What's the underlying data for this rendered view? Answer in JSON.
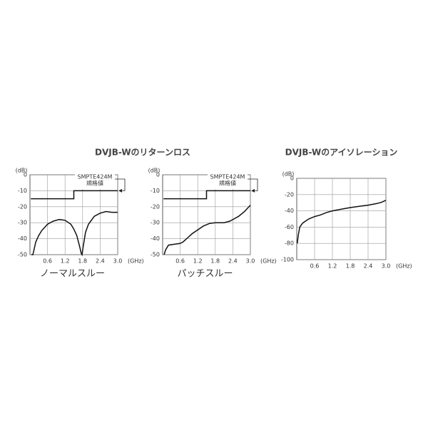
{
  "title": "DVJB-Wのリターンロス",
  "chart_data": [
    {
      "type": "line",
      "caption": "ノーマルスルー",
      "y_unit": "(dB)",
      "x_unit": "(GHz)",
      "annotation": [
        "SMPTE424M",
        "規格値"
      ],
      "xlim": [
        0,
        3
      ],
      "ylim": [
        -50,
        0
      ],
      "xticks": [
        0.6,
        1.2,
        1.8,
        2.4,
        {
          "value": 3,
          "label": "3.0"
        }
      ],
      "yticks": [
        0,
        -10,
        -20,
        -30,
        -40,
        -50
      ],
      "grid": true,
      "series": [
        {
          "color": "#111111",
          "x": [
            0.03,
            1.5,
            1.5,
            3.0
          ],
          "values": [
            -15,
            -15,
            -10,
            -10
          ]
        },
        {
          "color": "#111111",
          "x": [
            0.05,
            0.1,
            0.2,
            0.3,
            0.4,
            0.6,
            0.8,
            1.0,
            1.2,
            1.4,
            1.5,
            1.6,
            1.7,
            1.75,
            1.78,
            1.82,
            1.9,
            2.0,
            2.2,
            2.4,
            2.6,
            2.8,
            3.0
          ],
          "values": [
            -50,
            -50,
            -42,
            -38,
            -35,
            -31,
            -29,
            -28,
            -28.5,
            -31,
            -34,
            -38,
            -45,
            -49,
            -50,
            -45,
            -36,
            -31,
            -26,
            -24,
            -23,
            -23.5,
            -23.5
          ]
        }
      ]
    },
    {
      "type": "line",
      "caption": "パッチスルー",
      "y_unit": "(dB)",
      "x_unit": "(GHz)",
      "annotation": [
        "SMPTE424M",
        "規格値"
      ],
      "xlim": [
        0,
        3
      ],
      "ylim": [
        -50,
        0
      ],
      "xticks": [
        0.6,
        1.2,
        1.8,
        2.4,
        {
          "value": 3,
          "label": "3.0"
        }
      ],
      "yticks": [
        0,
        -10,
        -20,
        -30,
        -40,
        -50
      ],
      "grid": true,
      "series": [
        {
          "color": "#111111",
          "x": [
            0.03,
            1.5,
            1.5,
            3.0
          ],
          "values": [
            -15,
            -15,
            -10,
            -10
          ]
        },
        {
          "color": "#111111",
          "x": [
            0.05,
            0.1,
            0.2,
            0.4,
            0.6,
            0.7,
            0.85,
            1.0,
            1.2,
            1.4,
            1.6,
            1.8,
            2.0,
            2.1,
            2.3,
            2.5,
            2.6,
            2.8,
            3.0
          ],
          "values": [
            -50,
            -47,
            -44,
            -43.5,
            -43,
            -42,
            -39.5,
            -37,
            -34.5,
            -32,
            -30.5,
            -30,
            -30,
            -30,
            -29,
            -27,
            -26,
            -23,
            -19
          ]
        }
      ]
    },
    {
      "type": "line",
      "title": "DVJB-Wのアイソレーション",
      "y_unit": "(dB)",
      "x_unit": "(GHz)",
      "xlim": [
        0,
        3
      ],
      "ylim": [
        -100,
        0
      ],
      "xticks": [
        0.6,
        1.2,
        1.8,
        2.4,
        {
          "value": 3,
          "label": "3.0"
        }
      ],
      "yticks": [
        0,
        -20,
        -40,
        -60,
        -80,
        -100
      ],
      "grid": true,
      "series": [
        {
          "color": "#111111",
          "x": [
            0.02,
            0.05,
            0.1,
            0.2,
            0.4,
            0.6,
            0.8,
            1.0,
            1.2,
            1.5,
            1.8,
            2.1,
            2.4,
            2.7,
            2.85,
            3.0
          ],
          "values": [
            -80,
            -70,
            -60,
            -55,
            -50,
            -47,
            -45,
            -42,
            -40,
            -38,
            -36,
            -34.5,
            -33,
            -31,
            -29.5,
            -27
          ]
        }
      ]
    }
  ]
}
